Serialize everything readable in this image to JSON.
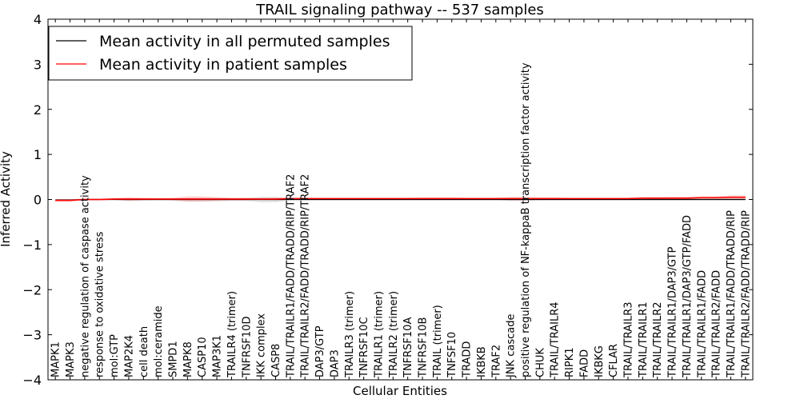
{
  "chart_data": {
    "type": "line",
    "title": "TRAIL signaling pathway -- 537 samples",
    "xlabel": "Cellular Entities",
    "ylabel": "Inferred Activity",
    "ylim": [
      -4,
      4
    ],
    "yticks": [
      -4,
      -3,
      -2,
      -1,
      0,
      1,
      2,
      3,
      4
    ],
    "ytick_labels": [
      "−4",
      "−3",
      "−2",
      "−1",
      "0",
      "1",
      "2",
      "3",
      "4"
    ],
    "legend": {
      "position": "top-left",
      "entries": [
        {
          "label": "Mean activity in all permuted samples",
          "color": "#000000"
        },
        {
          "label": "Mean activity in patient samples",
          "color": "#ff0000"
        }
      ]
    },
    "categories": [
      "MAPK1",
      "MAPK3",
      "negative regulation of caspase activity",
      "response to oxidative stress",
      "mol:GTP",
      "MAP2K4",
      "cell death",
      "mol:ceramide",
      "SMPD1",
      "MAPK8",
      "CASP10",
      "MAP3K1",
      "TRAILR4 (trimer)",
      "TNFRSF10D",
      "IKK complex",
      "CASP8",
      "TRAIL/TRAILR1/FADD/TRADD/RIP/TRAF2",
      "TRAIL/TRAILR2/FADD/TRADD/RIP/TRAF2",
      "DAP3/GTP",
      "DAP3",
      "TRAILR3 (trimer)",
      "TNFRSF10C",
      "TRAILR1 (trimer)",
      "TRAILR2 (trimer)",
      "TNFRSF10A",
      "TNFRSF10B",
      "TRAIL (trimer)",
      "TNFSF10",
      "TRADD",
      "IKBKB",
      "TRAF2",
      "JNK cascade",
      "positive regulation of NF-kappaB transcription factor activity",
      "CHUK",
      "TRAIL/TRAILR4",
      "RIPK1",
      "FADD",
      "IKBKG",
      "CFLAR",
      "TRAIL/TRAILR3",
      "TRAIL/TRAILR1",
      "TRAIL/TRAILR2",
      "TRAIL/TRAILR1/DAP3/GTP",
      "TRAIL/TRAILR1/DAP3/GTP/FADD",
      "TRAIL/TRAILR1/FADD",
      "TRAIL/TRAILR2/FADD",
      "TRAIL/TRAILR1/FADD/TRADD/RIP",
      "TRAIL/TRAILR2/FADD/TRADD/RIP"
    ],
    "series": [
      {
        "name": "Mean activity in all permuted samples",
        "color": "#000000",
        "values": [
          -0.01,
          -0.01,
          0,
          0,
          0,
          0,
          0,
          0,
          0,
          0,
          0,
          0,
          0,
          0,
          0,
          0,
          0,
          0,
          0,
          0,
          0,
          0,
          0,
          0,
          0,
          0,
          0,
          0,
          0,
          0,
          0,
          0,
          0,
          0,
          0,
          0,
          0,
          0,
          0,
          0,
          0,
          0,
          0,
          0,
          0,
          0,
          0,
          0
        ],
        "band": [
          0.02,
          0.02,
          0.01,
          0.01,
          0.01,
          0.03,
          0.02,
          0.02,
          0.02,
          0.04,
          0.04,
          0.04,
          0.03,
          0.03,
          0.06,
          0.06,
          0.02,
          0.02,
          0.02,
          0.02,
          0.02,
          0.02,
          0.02,
          0.02,
          0.02,
          0.02,
          0.02,
          0.02,
          0.02,
          0.02,
          0.02,
          0.03,
          0.03,
          0.02,
          0.02,
          0.02,
          0.02,
          0.02,
          0.02,
          0.02,
          0.02,
          0.02,
          0.02,
          0.02,
          0.02,
          0.02,
          0.02,
          0.02
        ]
      },
      {
        "name": "Mean activity in patient samples",
        "color": "#ff0000",
        "values": [
          -0.02,
          -0.02,
          0,
          0,
          0.01,
          0.01,
          0.01,
          0.01,
          0.01,
          0.01,
          0.01,
          0.01,
          0.01,
          0.01,
          0.01,
          0.01,
          0.02,
          0.02,
          0.02,
          0.02,
          0.02,
          0.02,
          0.02,
          0.02,
          0.02,
          0.02,
          0.02,
          0.02,
          0.02,
          0.02,
          0.02,
          0.02,
          0.02,
          0.02,
          0.02,
          0.02,
          0.02,
          0.02,
          0.02,
          0.02,
          0.03,
          0.03,
          0.03,
          0.03,
          0.04,
          0.04,
          0.05,
          0.05
        ],
        "band": [
          0.03,
          0.03,
          0.02,
          0.02,
          0.02,
          0.04,
          0.03,
          0.02,
          0.03,
          0.06,
          0.06,
          0.04,
          0.03,
          0.03,
          0.02,
          0.03,
          0.02,
          0.02,
          0.02,
          0.02,
          0.02,
          0.02,
          0.02,
          0.02,
          0.02,
          0.03,
          0.03,
          0.03,
          0.02,
          0.02,
          0.02,
          0.04,
          0.04,
          0.03,
          0.03,
          0.02,
          0.02,
          0.02,
          0.02,
          0.02,
          0.02,
          0.02,
          0.03,
          0.03,
          0.03,
          0.03,
          0.04,
          0.04
        ]
      }
    ]
  }
}
